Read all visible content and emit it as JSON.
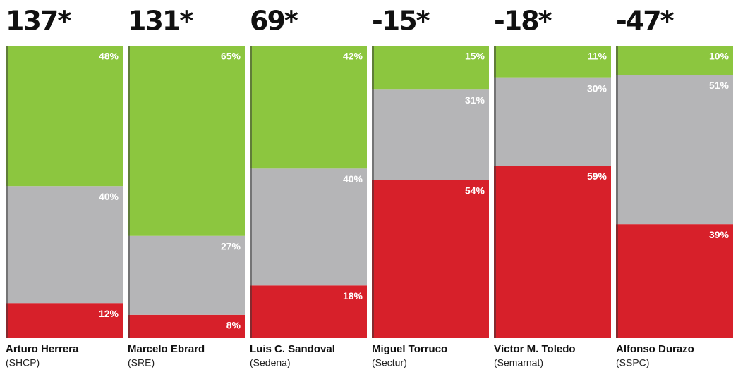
{
  "chart_data": {
    "type": "stacked_bar",
    "categories": [
      "Arturo Herrera",
      "Marcelo Ebrard",
      "Luis C. Sandoval",
      "Miguel Torruco",
      "Víctor M. Toledo",
      "Alfonso Durazo"
    ],
    "subcategories": [
      "(SHCP)",
      "(SRE)",
      "(Sedena)",
      "(Sectur)",
      "(Semarnat)",
      "(SSPC)"
    ],
    "scores": [
      "137*",
      "131*",
      "69*",
      "-15*",
      "-18*",
      "-47*"
    ],
    "ylim": [
      0,
      100
    ],
    "series": [
      {
        "color": "#8cc63f",
        "values": [
          48,
          65,
          42,
          15,
          11,
          10
        ],
        "value_labels": [
          "48%",
          "65%",
          "42%",
          "15%",
          "11%",
          "10%"
        ]
      },
      {
        "color": "#b5b5b7",
        "values": [
          40,
          27,
          40,
          31,
          30,
          51
        ],
        "value_labels": [
          "40%",
          "27%",
          "40%",
          "31%",
          "30%",
          "51%"
        ]
      },
      {
        "color": "#d7202a",
        "values": [
          12,
          8,
          18,
          54,
          59,
          39
        ],
        "value_labels": [
          "12%",
          "8%",
          "18%",
          "54%",
          "59%",
          "39%"
        ]
      }
    ]
  }
}
